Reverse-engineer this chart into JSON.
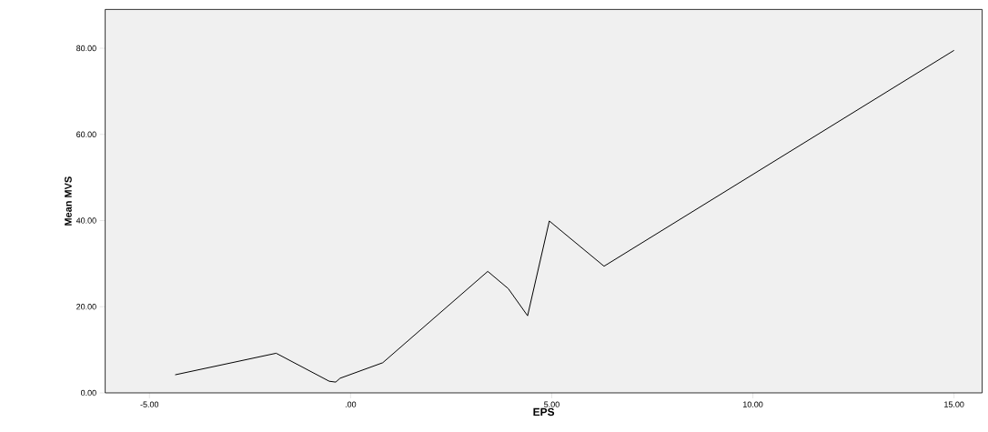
{
  "chart_data": {
    "type": "line",
    "xlabel": "EPS",
    "ylabel": "Mean MVS",
    "x": [
      -4.36,
      -1.85,
      -0.53,
      -0.37,
      -0.26,
      0.8,
      3.41,
      3.92,
      4.4,
      4.94,
      6.3,
      15.0
    ],
    "values": [
      4.2,
      9.2,
      2.7,
      2.5,
      3.4,
      7.0,
      28.2,
      24.2,
      17.9,
      39.9,
      29.4,
      79.5
    ],
    "color": "#000000",
    "xlim": [
      -6.1,
      15.7
    ],
    "ylim": [
      0,
      89
    ],
    "xticks": [
      {
        "value": -5,
        "label": "-5.00"
      },
      {
        "value": 0,
        "label": ".00"
      },
      {
        "value": 5,
        "label": "5.00"
      },
      {
        "value": 10,
        "label": "10.00"
      },
      {
        "value": 15,
        "label": "15.00"
      }
    ],
    "yticks": [
      {
        "value": 0,
        "label": "0.00"
      },
      {
        "value": 20,
        "label": "20.00"
      },
      {
        "value": 40,
        "label": "40.00"
      },
      {
        "value": 60,
        "label": "60.00"
      },
      {
        "value": 80,
        "label": "80.00"
      }
    ],
    "grid": false,
    "marker": "none",
    "line_style": "solid"
  }
}
